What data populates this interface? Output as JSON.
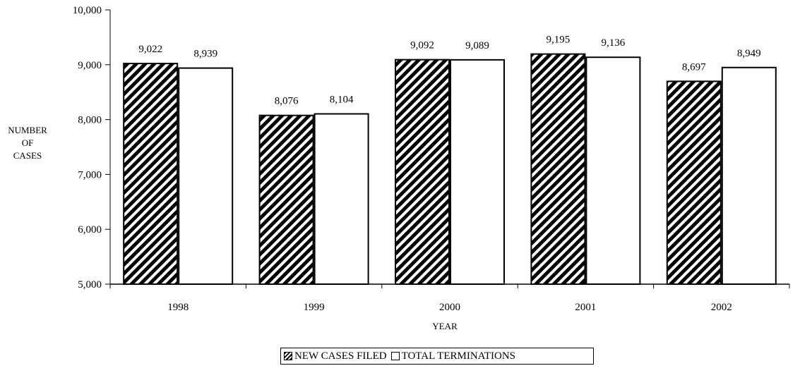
{
  "chart_data": {
    "type": "bar",
    "categories": [
      "1998",
      "1999",
      "2000",
      "2001",
      "2002"
    ],
    "series": [
      {
        "name": "NEW CASES FILED",
        "values": [
          9022,
          8076,
          9092,
          9195,
          8697
        ],
        "labels": [
          "9,022",
          "8,076",
          "9,092",
          "9,195",
          "8,697"
        ],
        "fill": "hatched"
      },
      {
        "name": "TOTAL TERMINATIONS",
        "values": [
          8939,
          8104,
          9089,
          9136,
          8949
        ],
        "labels": [
          "8,939",
          "8,104",
          "9,089",
          "9,136",
          "8,949"
        ],
        "fill": "white"
      }
    ],
    "ylim": [
      5000,
      10000
    ],
    "yticks": [
      5000,
      6000,
      7000,
      8000,
      9000,
      10000
    ],
    "ytick_labels": [
      "5,000",
      "6,000",
      "7,000",
      "8,000",
      "9,000",
      "10,000"
    ],
    "ylabel_lines": [
      "NUMBER",
      "OF",
      "CASES"
    ],
    "xlabel": "YEAR",
    "legend_position": "bottom-center",
    "grid": false
  },
  "legend": {
    "item1": "NEW CASES FILED",
    "item2": "TOTAL TERMINATIONS"
  },
  "colors": {
    "axis": "#000000",
    "bar_outline": "#000000",
    "background": "#ffffff"
  }
}
